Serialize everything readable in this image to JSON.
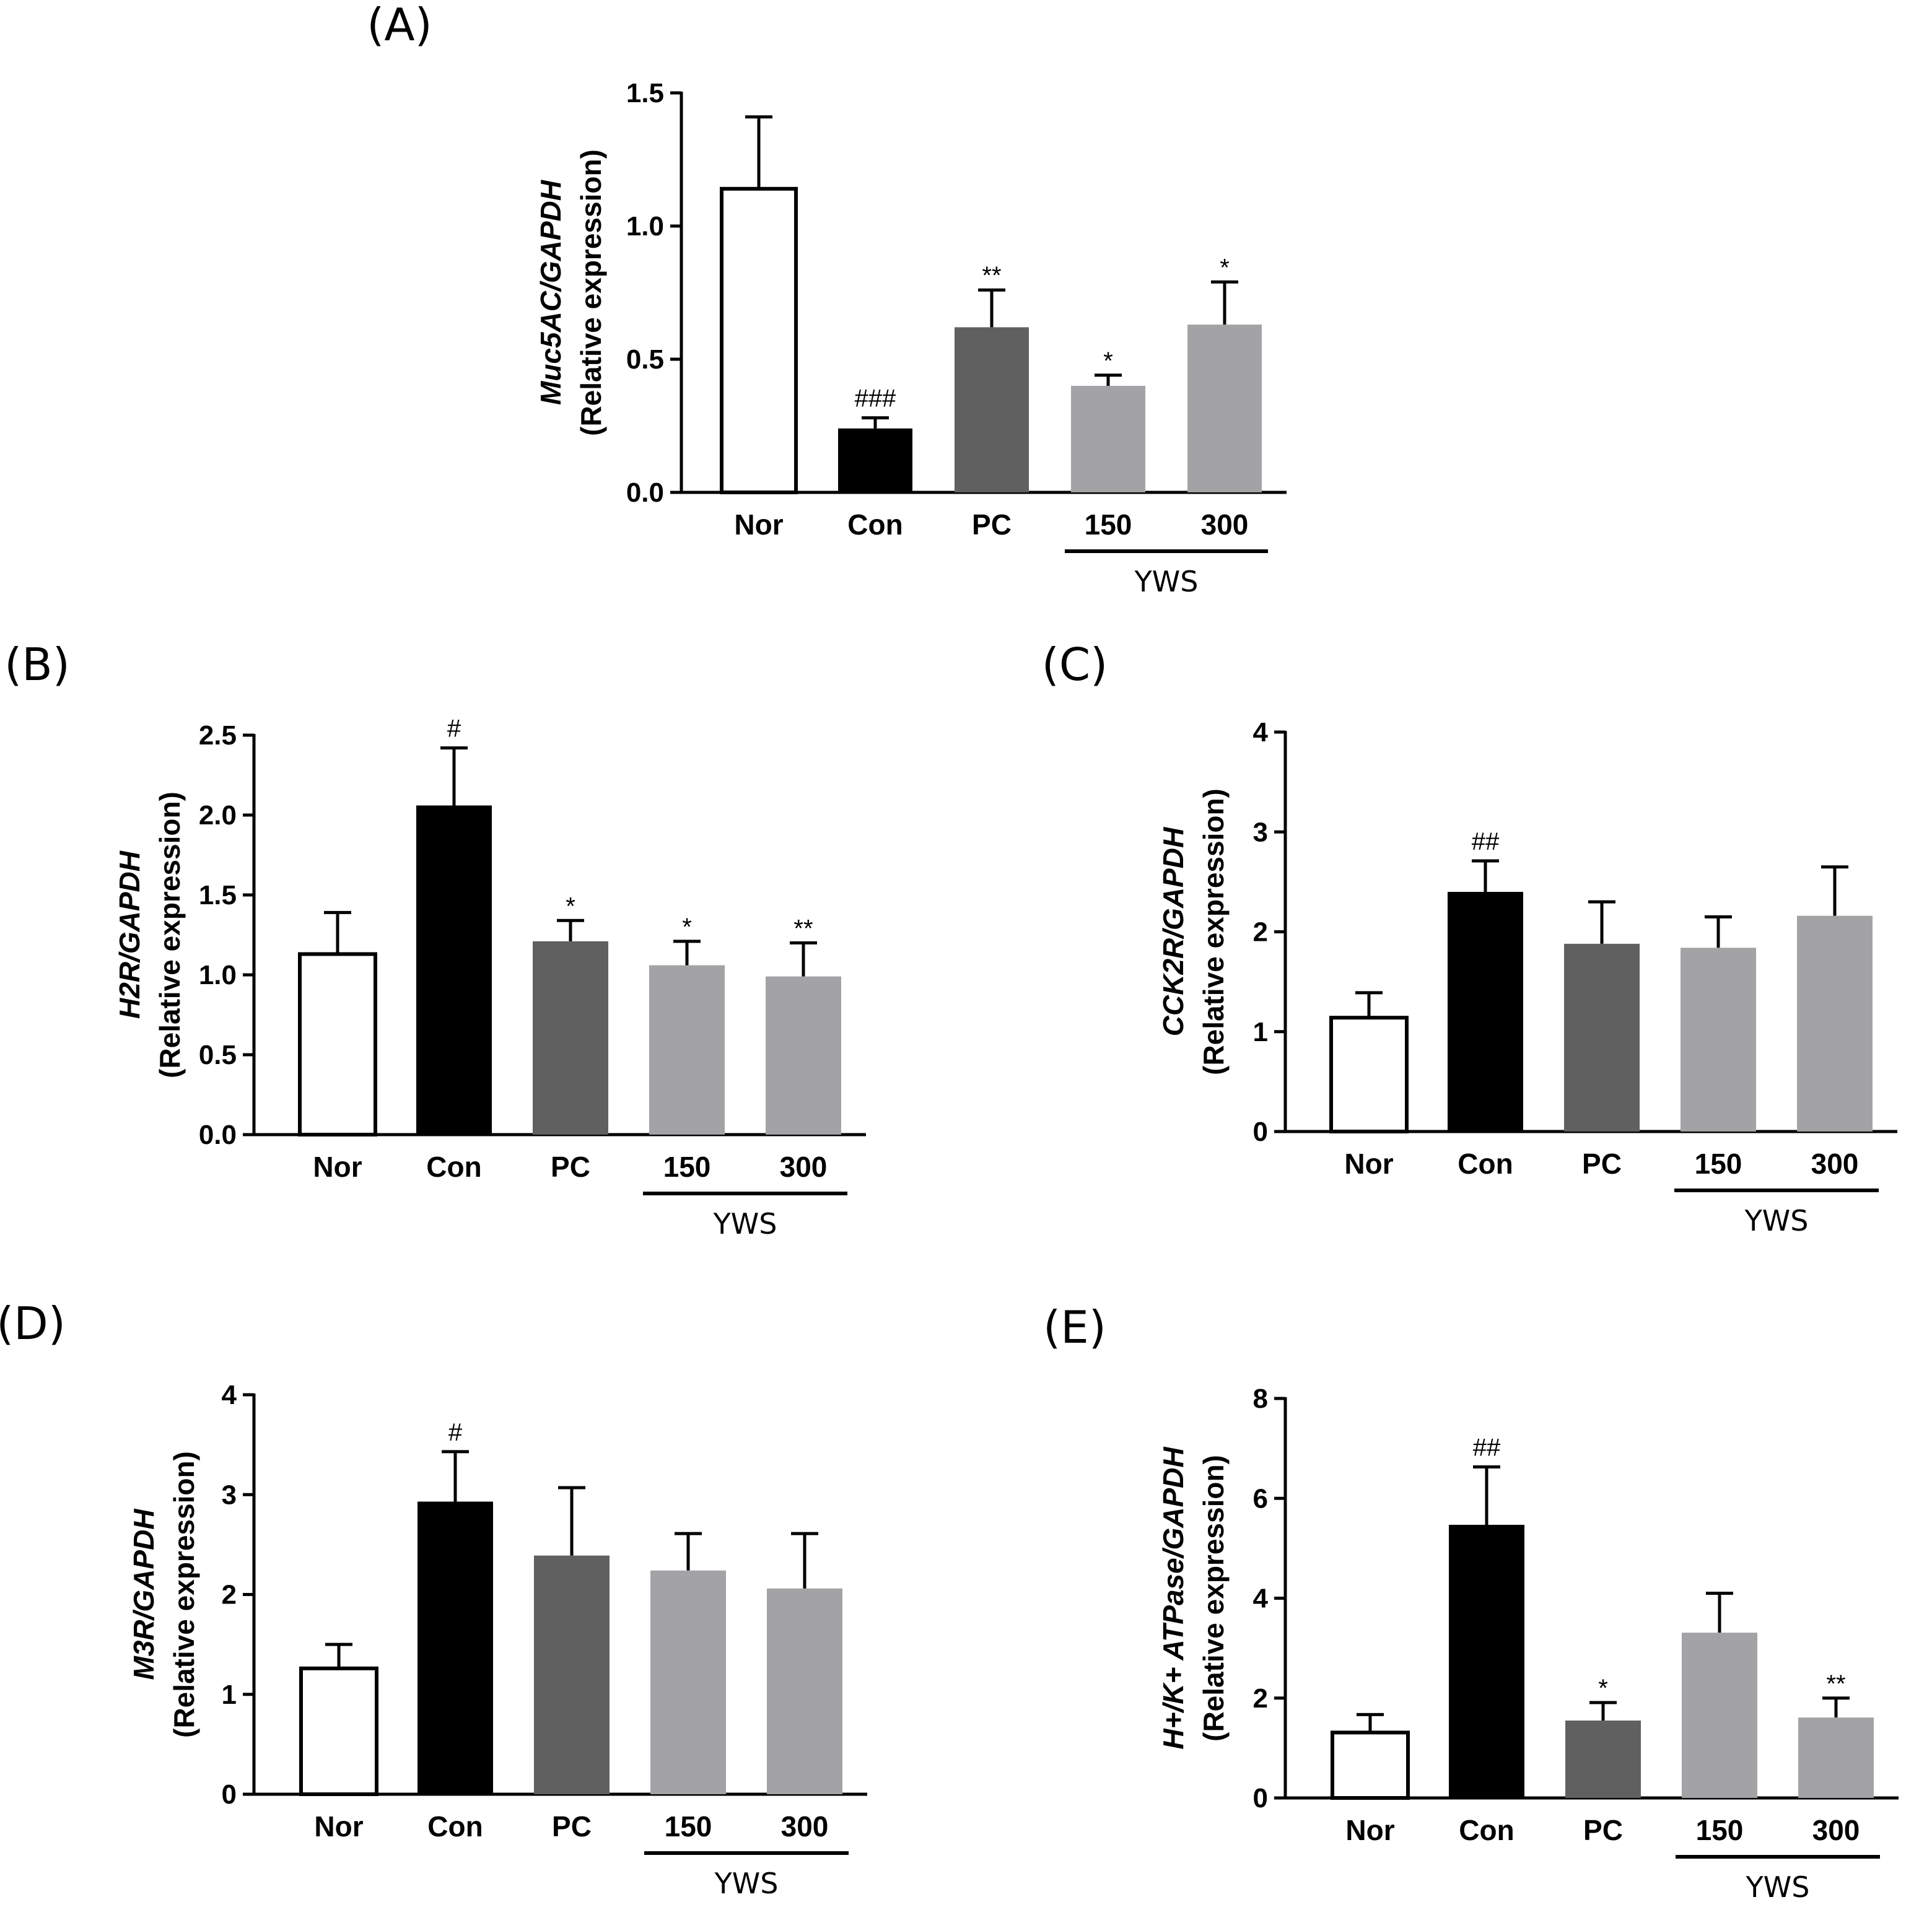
{
  "chart_data": [
    {
      "id": "A",
      "type": "bar",
      "panel_label": "(A)",
      "title": "",
      "xlabel": "",
      "ylabel_gene": "Muc5AC/GAPDH",
      "ylabel_sub": "(Relative expression)",
      "categories": [
        "Nor",
        "Con",
        "PC",
        "150",
        "300"
      ],
      "group_label": "YWS",
      "group_span": [
        3,
        4
      ],
      "values": [
        1.14,
        0.24,
        0.62,
        0.4,
        0.63
      ],
      "errors": [
        0.27,
        0.04,
        0.14,
        0.04,
        0.16
      ],
      "annotations": [
        "",
        "###",
        "**",
        "*",
        "*"
      ],
      "ylim": [
        0,
        1.5
      ],
      "yticks": [
        0,
        0.5,
        1.0,
        1.5
      ],
      "ytick_labels": [
        "0.0",
        "0.5",
        "1.0",
        "1.5"
      ],
      "colors": [
        "#ffffff",
        "#000000",
        "#606060",
        "#a3a3a6",
        "#a3a3a6"
      ]
    },
    {
      "id": "B",
      "type": "bar",
      "panel_label": "(B)",
      "title": "",
      "xlabel": "",
      "ylabel_gene": "H2R/GAPDH",
      "ylabel_sub": "(Relative expression)",
      "categories": [
        "Nor",
        "Con",
        "PC",
        "150",
        "300"
      ],
      "group_label": "YWS",
      "group_span": [
        3,
        4
      ],
      "values": [
        1.13,
        2.06,
        1.21,
        1.06,
        0.99
      ],
      "errors": [
        0.26,
        0.36,
        0.13,
        0.15,
        0.21
      ],
      "annotations": [
        "",
        "#",
        "*",
        "*",
        "**"
      ],
      "ylim": [
        0,
        2.5
      ],
      "yticks": [
        0,
        0.5,
        1.0,
        1.5,
        2.0,
        2.5
      ],
      "ytick_labels": [
        "0.0",
        "0.5",
        "1.0",
        "1.5",
        "2.0",
        "2.5"
      ],
      "colors": [
        "#ffffff",
        "#000000",
        "#606060",
        "#a3a3a6",
        "#a3a3a6"
      ]
    },
    {
      "id": "C",
      "type": "bar",
      "panel_label": "(C)",
      "title": "",
      "xlabel": "",
      "ylabel_gene": "CCK2R/GAPDH",
      "ylabel_sub": "(Relative expression)",
      "categories": [
        "Nor",
        "Con",
        "PC",
        "150",
        "300"
      ],
      "group_label": "YWS",
      "group_span": [
        3,
        4
      ],
      "values": [
        1.14,
        2.4,
        1.88,
        1.84,
        2.16
      ],
      "errors": [
        0.25,
        0.31,
        0.42,
        0.31,
        0.49
      ],
      "annotations": [
        "",
        "##",
        "",
        "",
        ""
      ],
      "ylim": [
        0,
        4
      ],
      "yticks": [
        0,
        1,
        2,
        3,
        4
      ],
      "ytick_labels": [
        "0",
        "1",
        "2",
        "3",
        "4"
      ],
      "colors": [
        "#ffffff",
        "#000000",
        "#606060",
        "#a3a3a6",
        "#a3a3a6"
      ]
    },
    {
      "id": "D",
      "type": "bar",
      "panel_label": "(D)",
      "title": "",
      "xlabel": "",
      "ylabel_gene": "M3R/GAPDH",
      "ylabel_sub": "(Relative expression)",
      "categories": [
        "Nor",
        "Con",
        "PC",
        "150",
        "300"
      ],
      "group_label": "YWS",
      "group_span": [
        3,
        4
      ],
      "values": [
        1.26,
        2.93,
        2.39,
        2.24,
        2.06
      ],
      "errors": [
        0.24,
        0.5,
        0.68,
        0.37,
        0.55
      ],
      "annotations": [
        "",
        "#",
        "",
        "",
        ""
      ],
      "ylim": [
        0,
        4
      ],
      "yticks": [
        0,
        1,
        2,
        3,
        4
      ],
      "ytick_labels": [
        "0",
        "1",
        "2",
        "3",
        "4"
      ],
      "colors": [
        "#ffffff",
        "#000000",
        "#606060",
        "#a3a3a6",
        "#a3a3a6"
      ]
    },
    {
      "id": "E",
      "type": "bar",
      "panel_label": "(E)",
      "title": "",
      "xlabel": "",
      "ylabel_gene": "H+/K+ ATPase/GAPDH",
      "ylabel_sub": "(Relative expression)",
      "categories": [
        "Nor",
        "Con",
        "PC",
        "150",
        "300"
      ],
      "group_label": "YWS",
      "group_span": [
        3,
        4
      ],
      "values": [
        1.31,
        5.47,
        1.55,
        3.31,
        1.61
      ],
      "errors": [
        0.36,
        1.16,
        0.36,
        0.79,
        0.39
      ],
      "annotations": [
        "",
        "##",
        "*",
        "",
        "**"
      ],
      "ylim": [
        0,
        8
      ],
      "yticks": [
        0,
        2,
        4,
        6,
        8
      ],
      "ytick_labels": [
        "0",
        "2",
        "4",
        "6",
        "8"
      ],
      "colors": [
        "#ffffff",
        "#000000",
        "#606060",
        "#a3a3a6",
        "#a3a3a6"
      ]
    }
  ]
}
